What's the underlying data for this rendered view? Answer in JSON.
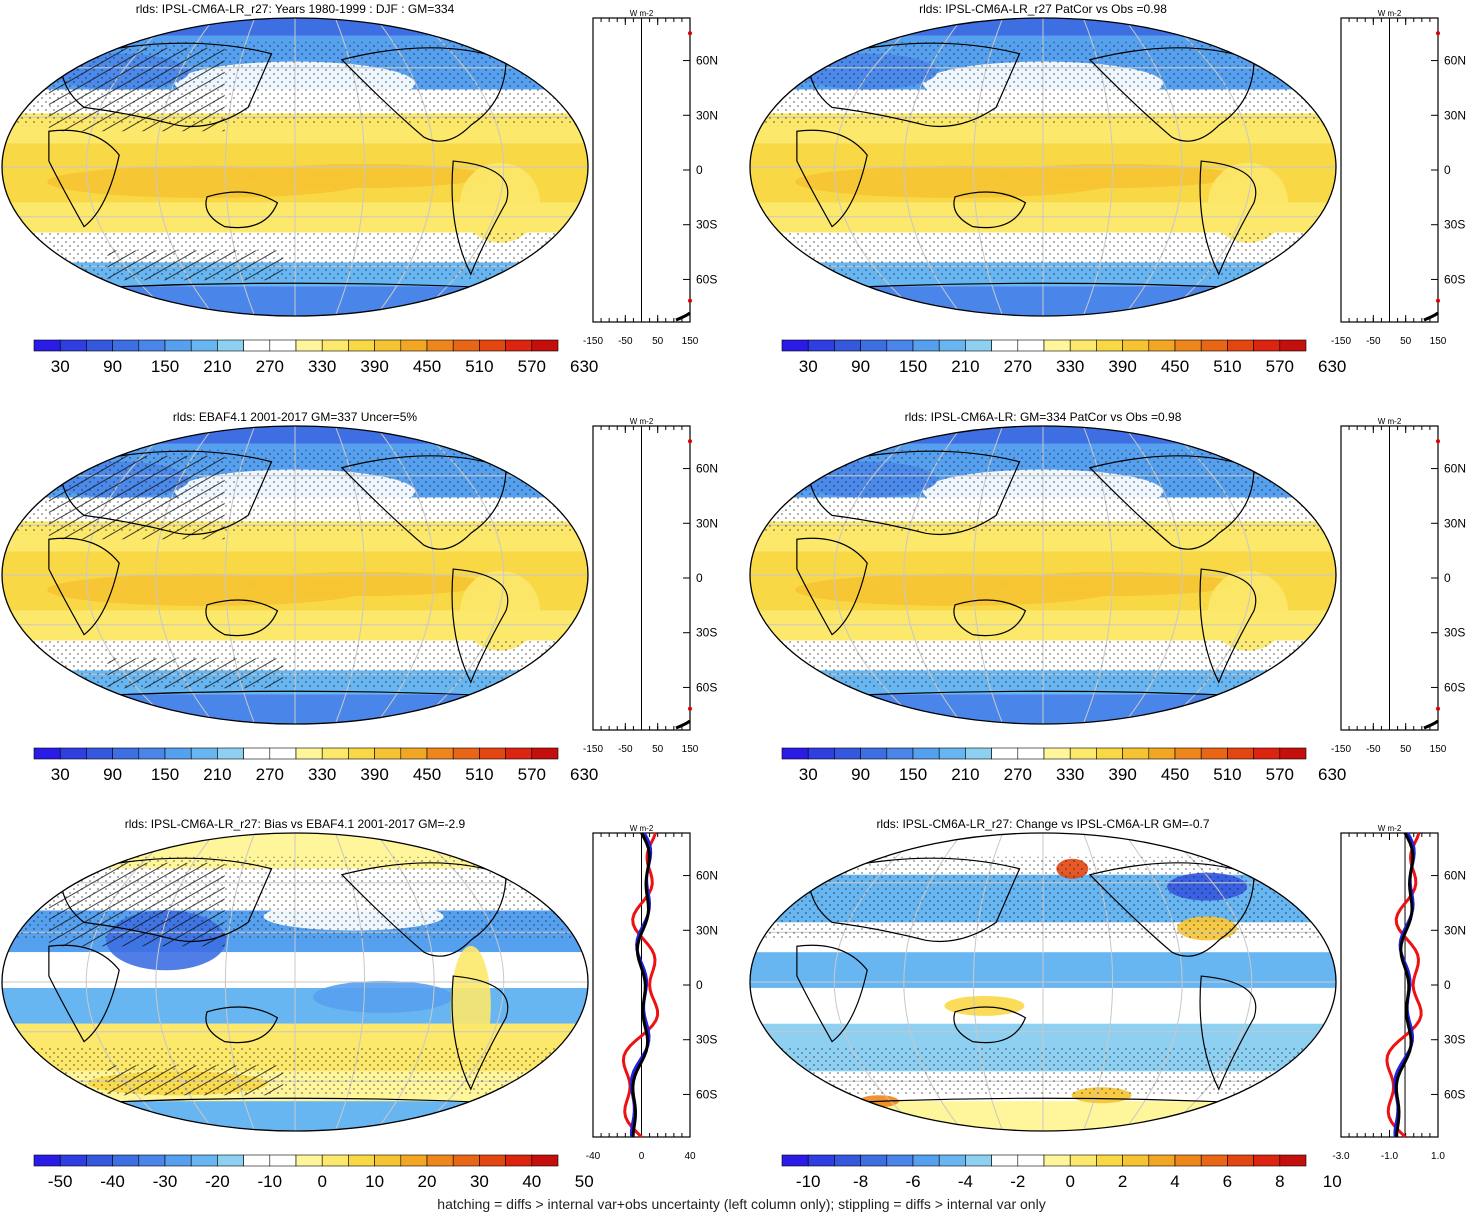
{
  "footer": "hatching = diffs > internal var+obs uncertainty (left column only); stippling = diffs > internal var only",
  "colorbar_sets": {
    "abs": [
      "30",
      "90",
      "150",
      "210",
      "270",
      "330",
      "390",
      "450",
      "510",
      "570",
      "630"
    ],
    "bias": [
      "-50",
      "-40",
      "-30",
      "-20",
      "-10",
      "0",
      "10",
      "20",
      "30",
      "40",
      "50"
    ],
    "change": [
      "-10",
      "-8",
      "-6",
      "-4",
      "-2",
      "0",
      "2",
      "4",
      "6",
      "8",
      "10"
    ]
  },
  "palette": [
    "#2a1ce6",
    "#2f3ee0",
    "#3558df",
    "#3d6fe3",
    "#4a86ea",
    "#56a0f0",
    "#67b6f2",
    "#8ed0f2",
    "#ffffff",
    "#ffffff",
    "#fff59a",
    "#fce86a",
    "#f9d846",
    "#f6c432",
    "#f2a724",
    "#ee861c",
    "#e96616",
    "#e44612",
    "#dd2410",
    "#c40f0c"
  ],
  "panels": [
    {
      "title": "rlds: IPSL-CM6A-LR_r27: Years 1980-1999 : DJF : GM=334",
      "kind": "abs",
      "lat_labels": [
        "60N",
        "30N",
        "0",
        "30S",
        "60S"
      ],
      "x_ticks": [
        "-150",
        "-50",
        "50",
        "150"
      ],
      "unit": "W m-2",
      "hatched": true
    },
    {
      "title": "rlds: IPSL-CM6A-LR_r27 PatCor vs Obs =0.98",
      "kind": "abs",
      "lat_labels": [
        "60N",
        "30N",
        "0",
        "30S",
        "60S"
      ],
      "x_ticks": [
        "-150",
        "-50",
        "50",
        "150"
      ],
      "unit": "W m-2",
      "hatched": false
    },
    {
      "title": "rlds: EBAF4.1 2001-2017 GM=337 Uncer=5%",
      "kind": "abs",
      "lat_labels": [
        "60N",
        "30N",
        "0",
        "30S",
        "60S"
      ],
      "x_ticks": [
        "-150",
        "-50",
        "50",
        "150"
      ],
      "unit": "W m-2",
      "hatched": true
    },
    {
      "title": "rlds: IPSL-CM6A-LR: GM=334 PatCor vs Obs =0.98",
      "kind": "abs",
      "lat_labels": [
        "60N",
        "30N",
        "0",
        "30S",
        "60S"
      ],
      "x_ticks": [
        "-150",
        "-50",
        "50",
        "150"
      ],
      "unit": "W m-2",
      "hatched": false
    },
    {
      "title": "rlds: IPSL-CM6A-LR_r27: Bias vs EBAF4.1 2001-2017 GM=-2.9",
      "kind": "bias",
      "lat_labels": [
        "60N",
        "30N",
        "0",
        "30S",
        "60S"
      ],
      "x_ticks": [
        "-40",
        "0",
        "40"
      ],
      "unit": "W m-2",
      "hatched": true
    },
    {
      "title": "rlds: IPSL-CM6A-LR_r27: Change vs IPSL-CM6A-LR GM=-0.7",
      "kind": "change",
      "lat_labels": [
        "60N",
        "30N",
        "0",
        "30S",
        "60S"
      ],
      "x_ticks": [
        "-3.0",
        "-1.0",
        "1.0"
      ],
      "unit": "W m-2",
      "hatched": false
    }
  ]
}
